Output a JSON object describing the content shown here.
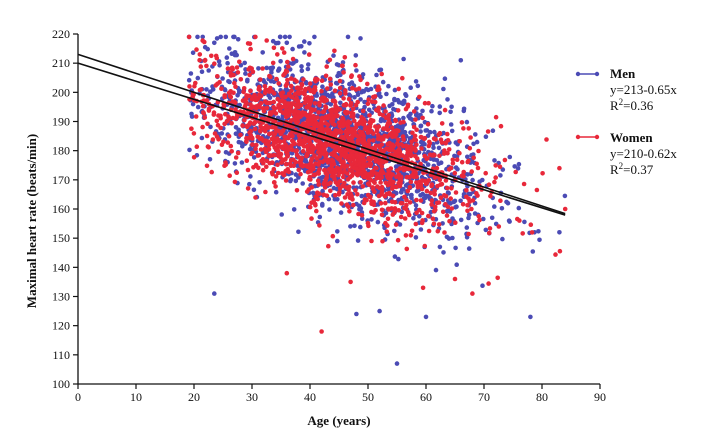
{
  "colors": {
    "men": "#4b4bb5",
    "women": "#e8283a",
    "axis": "#111111",
    "trend": "#111111"
  },
  "chart_data": {
    "type": "scatter",
    "xlabel": "Age (years)",
    "ylabel": "Maximal heart rate (beats/min)",
    "xlim": [
      0,
      90
    ],
    "ylim": [
      100,
      220
    ],
    "xticks": [
      0,
      10,
      20,
      30,
      40,
      50,
      60,
      70,
      80,
      90
    ],
    "yticks": [
      100,
      110,
      120,
      130,
      140,
      150,
      160,
      170,
      180,
      190,
      200,
      210,
      220
    ],
    "grid": false,
    "legend_position": "right",
    "series": [
      {
        "name": "Men",
        "color": "#4b4bb5",
        "equation": "y=213-0.65x",
        "r2_prefix": "R",
        "r2_sup": "2",
        "r2_value": "=0.36",
        "trend": {
          "intercept": 213,
          "slope": -0.65,
          "x_range": [
            0,
            84
          ]
        },
        "scatter": {
          "seed": 11,
          "n": 1700,
          "x_mean": 46,
          "x_sd": 12,
          "x_min": 19,
          "x_max": 84,
          "noise_sd": 12
        },
        "points": [
          [
            23.5,
            131
          ],
          [
            55,
            107
          ],
          [
            78,
            123
          ],
          [
            52,
            125
          ],
          [
            60,
            123
          ],
          [
            48,
            124
          ],
          [
            21.5,
            219
          ],
          [
            23.5,
            217
          ],
          [
            66,
            211
          ],
          [
            36,
            217
          ],
          [
            83,
            152
          ]
        ]
      },
      {
        "name": "Women",
        "color": "#e8283a",
        "equation": "y=210-0.62x",
        "r2_prefix": "R",
        "r2_sup": "2",
        "r2_value": "=0.37",
        "trend": {
          "intercept": 210,
          "slope": -0.62,
          "x_range": [
            0,
            84
          ]
        },
        "scatter": {
          "seed": 29,
          "n": 1700,
          "x_mean": 44,
          "x_sd": 12,
          "x_min": 19,
          "x_max": 84,
          "noise_sd": 11
        },
        "points": [
          [
            42,
            118
          ],
          [
            36,
            138
          ],
          [
            59.5,
            133
          ],
          [
            68,
            131
          ],
          [
            47,
            135
          ],
          [
            65,
            136
          ],
          [
            84,
            160
          ],
          [
            83,
            174
          ],
          [
            46,
            212
          ],
          [
            21,
            213
          ]
        ]
      }
    ]
  }
}
